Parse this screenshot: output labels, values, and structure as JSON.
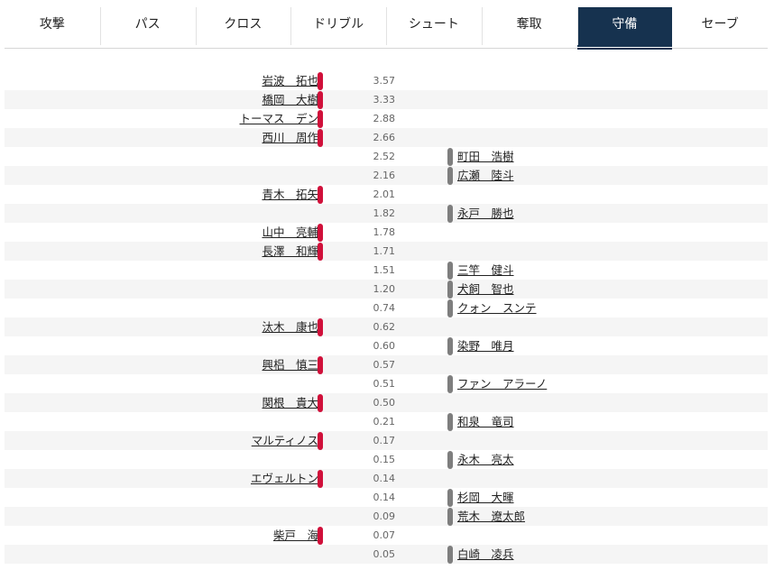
{
  "tabs": [
    {
      "label": "攻撃",
      "active": false
    },
    {
      "label": "パス",
      "active": false
    },
    {
      "label": "クロス",
      "active": false
    },
    {
      "label": "ドリブル",
      "active": false
    },
    {
      "label": "シュート",
      "active": false
    },
    {
      "label": "奪取",
      "active": false
    },
    {
      "label": "守備",
      "active": true
    },
    {
      "label": "セーブ",
      "active": false
    }
  ],
  "colors": {
    "home_bar": "#d0103a",
    "away_bar": "#7e7e7e",
    "active_tab": "#16324f"
  },
  "rows": [
    {
      "side": "home",
      "name": "岩波　拓也",
      "value": "3.57"
    },
    {
      "side": "home",
      "name": "橋岡　大樹",
      "value": "3.33"
    },
    {
      "side": "home",
      "name": "トーマス　デン",
      "value": "2.88"
    },
    {
      "side": "home",
      "name": "西川　周作",
      "value": "2.66"
    },
    {
      "side": "away",
      "name": "町田　浩樹",
      "value": "2.52"
    },
    {
      "side": "away",
      "name": "広瀬　陸斗",
      "value": "2.16"
    },
    {
      "side": "home",
      "name": "青木　拓矢",
      "value": "2.01"
    },
    {
      "side": "away",
      "name": "永戸　勝也",
      "value": "1.82"
    },
    {
      "side": "home",
      "name": "山中　亮輔",
      "value": "1.78"
    },
    {
      "side": "home",
      "name": "長澤　和輝",
      "value": "1.71"
    },
    {
      "side": "away",
      "name": "三竿　健斗",
      "value": "1.51"
    },
    {
      "side": "away",
      "name": "犬飼　智也",
      "value": "1.20"
    },
    {
      "side": "away",
      "name": "クォン　スンテ",
      "value": "0.74"
    },
    {
      "side": "home",
      "name": "汰木　康也",
      "value": "0.62"
    },
    {
      "side": "away",
      "name": "染野　唯月",
      "value": "0.60"
    },
    {
      "side": "home",
      "name": "興梠　慎三",
      "value": "0.57"
    },
    {
      "side": "away",
      "name": "ファン　アラーノ",
      "value": "0.51"
    },
    {
      "side": "home",
      "name": "関根　貴大",
      "value": "0.50"
    },
    {
      "side": "away",
      "name": "和泉　竜司",
      "value": "0.21"
    },
    {
      "side": "home",
      "name": "マルティノス",
      "value": "0.17"
    },
    {
      "side": "away",
      "name": "永木　亮太",
      "value": "0.15"
    },
    {
      "side": "home",
      "name": "エヴェルトン",
      "value": "0.14"
    },
    {
      "side": "away",
      "name": "杉岡　大暉",
      "value": "0.14"
    },
    {
      "side": "away",
      "name": "荒木　遼太郎",
      "value": "0.09"
    },
    {
      "side": "home",
      "name": "柴戸　海",
      "value": "0.07"
    },
    {
      "side": "away",
      "name": "白崎　凌兵",
      "value": "0.05"
    }
  ]
}
